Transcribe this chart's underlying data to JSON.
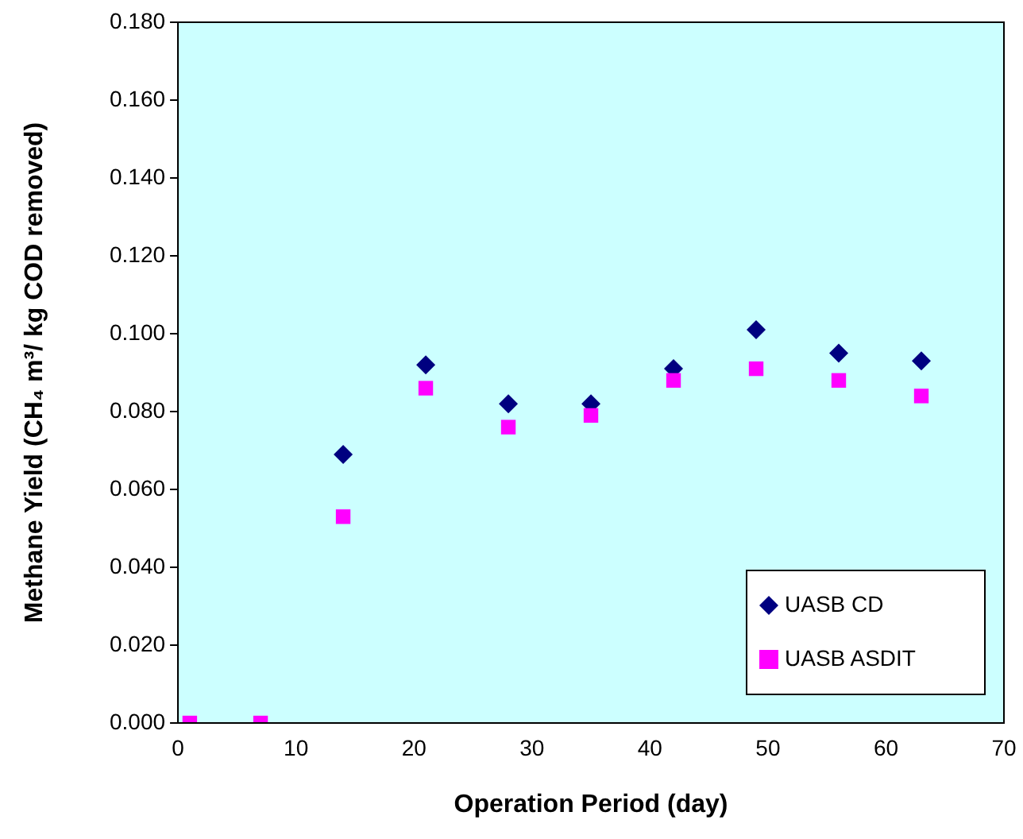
{
  "chart_data": {
    "type": "scatter",
    "xlabel": "Operation Period (day)",
    "ylabel": "Methane Yield (CH₄ m³/ kg COD removed)",
    "x": [
      1,
      7,
      14,
      21,
      28,
      35,
      42,
      49,
      56,
      63
    ],
    "series": [
      {
        "name": "UASB CD",
        "color": "#000080",
        "marker": "diamond",
        "values": [
          null,
          null,
          0.069,
          0.092,
          0.082,
          0.082,
          0.091,
          0.101,
          0.095,
          0.093
        ]
      },
      {
        "name": "UASB ASDIT",
        "color": "#ff00ff",
        "marker": "square",
        "values": [
          0,
          0,
          0.053,
          0.086,
          0.076,
          0.079,
          0.088,
          0.091,
          0.088,
          0.084
        ]
      }
    ],
    "xlim": [
      0,
      70
    ],
    "xticks": [
      0,
      10,
      20,
      30,
      40,
      50,
      60,
      70
    ],
    "ylim": [
      0,
      0.18
    ],
    "yticks": [
      {
        "value": 0,
        "label": "0.000"
      },
      {
        "value": 0.02,
        "label": "0.020"
      },
      {
        "value": 0.04,
        "label": "0.040"
      },
      {
        "value": 0.06,
        "label": "0.060"
      },
      {
        "value": 0.08,
        "label": "0.080"
      },
      {
        "value": 0.1,
        "label": "0.100"
      },
      {
        "value": 0.12,
        "label": "0.120"
      },
      {
        "value": 0.14,
        "label": "0.140"
      },
      {
        "value": 0.16,
        "label": "0.160"
      },
      {
        "value": 0.18,
        "label": "0.180"
      }
    ],
    "grid": false,
    "legend": "bottom right"
  }
}
